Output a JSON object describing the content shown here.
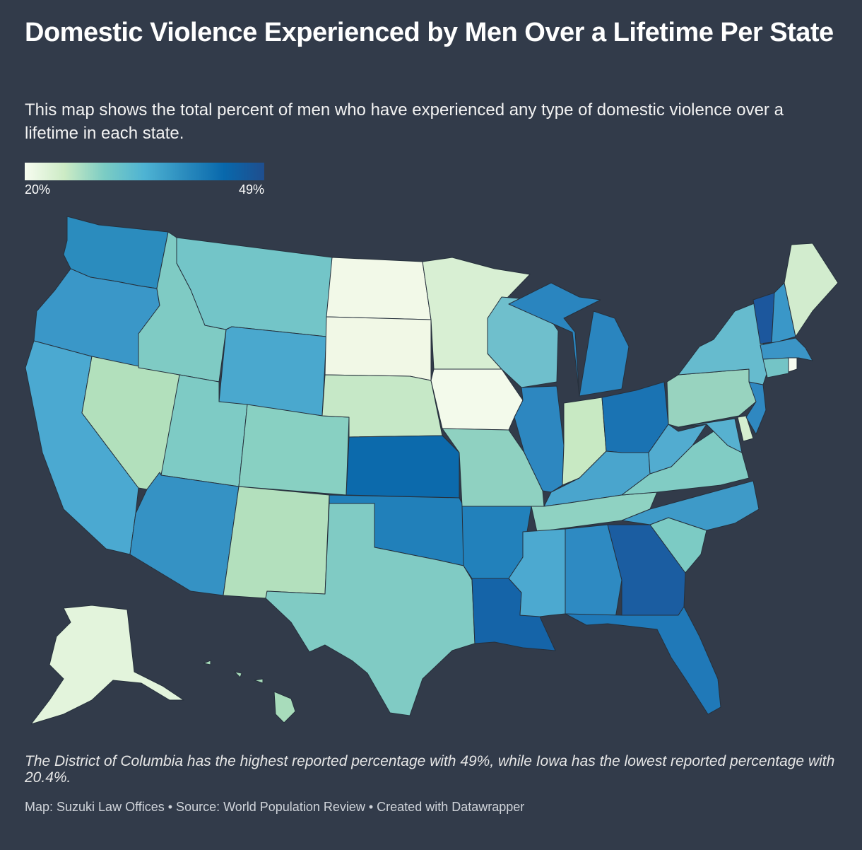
{
  "title": "Domestic Violence Experienced by Men Over a Lifetime Per State",
  "subtitle": "This map shows the total percent of men who have experienced any type of domestic violence over a lifetime in each state.",
  "legend": {
    "min_label": "20%",
    "max_label": "49%",
    "colors": [
      "#f7fcf0",
      "#ccebc5",
      "#7bccc4",
      "#4eb3d3",
      "#2b8cbe",
      "#0868ac",
      "#1f4e8e"
    ]
  },
  "map": {
    "type": "choropleth",
    "region": "United States",
    "colors_by_state": {
      "WA": "#2b8cbe",
      "OR": "#3a97c8",
      "CA": "#4ba9d1",
      "NV": "#b2e0bc",
      "ID": "#7fcbc4",
      "MT": "#73c5c8",
      "WY": "#4aa8ce",
      "UT": "#7ecbc5",
      "AZ": "#3592c4",
      "CO": "#88d0c2",
      "NM": "#b3e0bd",
      "ND": "#f2f9e8",
      "SD": "#f1f8e6",
      "NE": "#c6e8c7",
      "KS": "#0c6aac",
      "OK": "#2180ba",
      "TX": "#80cbc4",
      "MN": "#d8efd3",
      "IA": "#f3faeb",
      "MO": "#8fd1c1",
      "AR": "#2281bb",
      "LA": "#1564a8",
      "WI": "#6fbfcc",
      "IL": "#2d87c0",
      "MI": "#2a85bf",
      "IN": "#c8e9c3",
      "OH": "#1a73b3",
      "KY": "#4aa5cd",
      "TN": "#8fd2c2",
      "MS": "#4ca9d0",
      "AL": "#2e8ac2",
      "GA": "#1b5da1",
      "FL": "#2079b8",
      "SC": "#7ccbc4",
      "NC": "#3e9ac8",
      "VA": "#81ccc4",
      "WV": "#52acd0",
      "PA": "#98d3bf",
      "NY": "#66bbce",
      "VT": "#1c579d",
      "NH": "#3a97c8",
      "ME": "#d2ecce",
      "MA": "#3b95c6",
      "CT": "#74c4c6",
      "RI": "#f7fcf0",
      "NJ": "#2f88c1",
      "DE": "#d5eecf",
      "MD": "#57b1d0",
      "AK": "#e3f4dc",
      "HI": "#a8dcbb"
    }
  },
  "note": "The District of Columbia has the highest reported percentage with 49%, while Iowa has the lowest reported percentage with 20.4%.",
  "footer": "Map: Suzuki Law Offices • Source: World Population Review • Created with Datawrapper"
}
